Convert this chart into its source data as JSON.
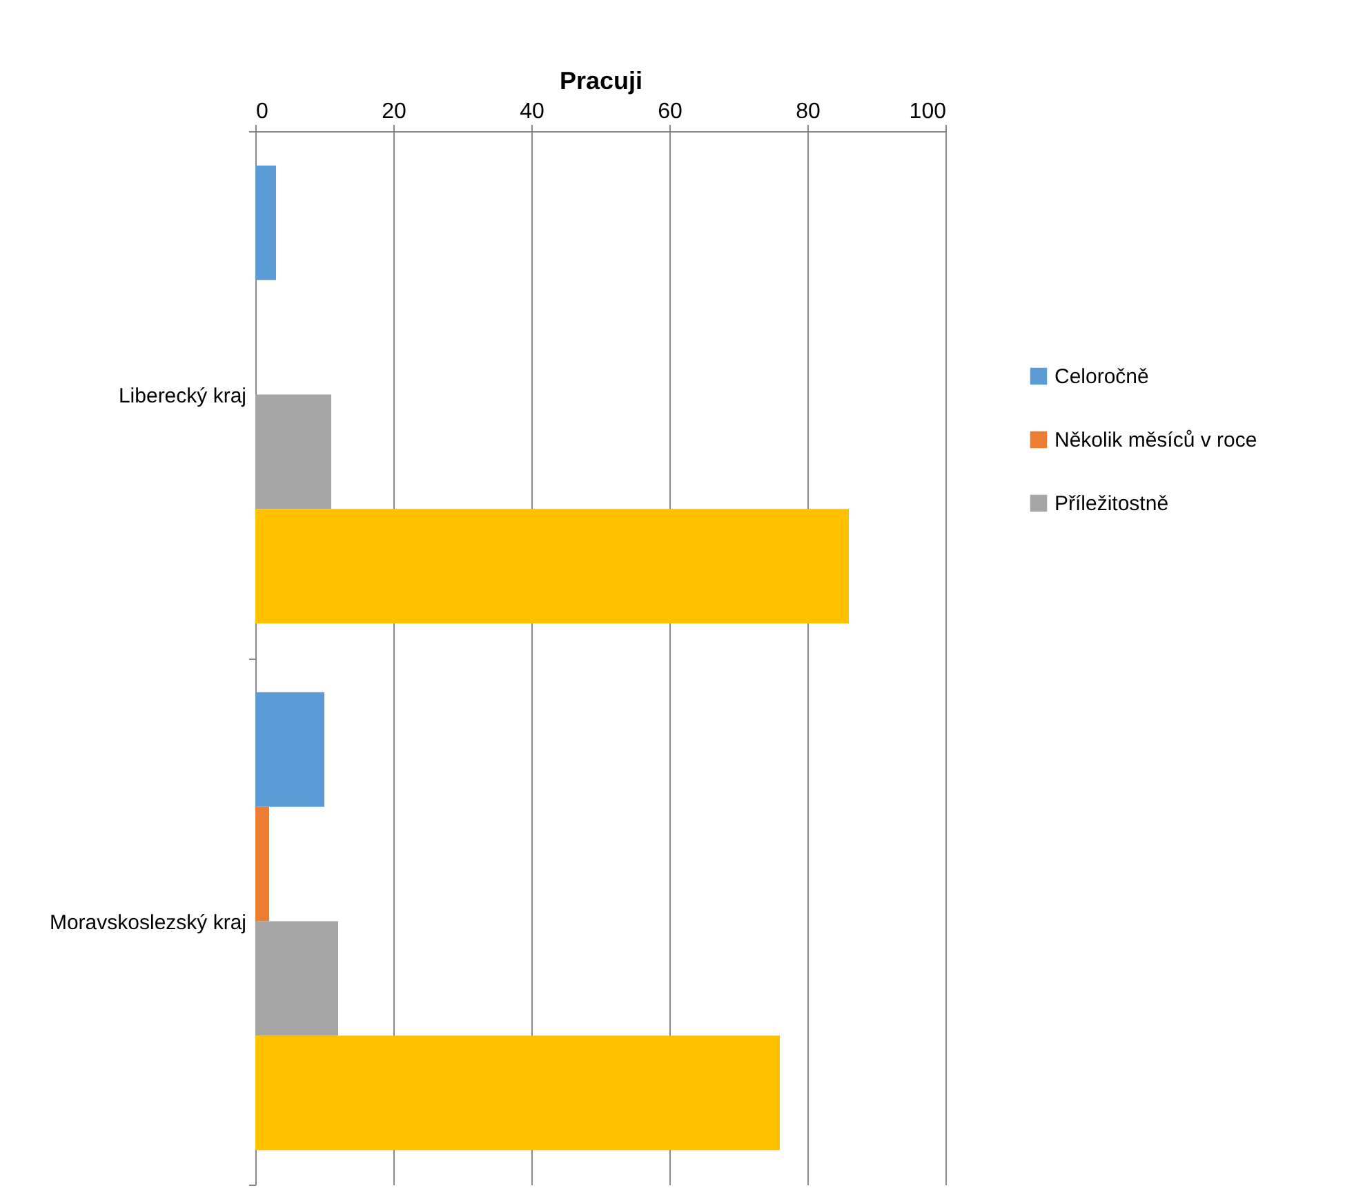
{
  "chart_data": {
    "type": "bar",
    "orientation": "horizontal",
    "xlabel": "Pracuji",
    "categories": [
      "Liberecký kraj",
      "Moravskoslezský kraj"
    ],
    "series": [
      {
        "name": "Celoročně",
        "color": "#5b9bd5",
        "values": [
          3,
          10
        ]
      },
      {
        "name": "Několik měsíců v roce",
        "color": "#ed7d31",
        "values": [
          0,
          2
        ]
      },
      {
        "name": "Příležitostně",
        "color": "#a5a5a5",
        "values": [
          11,
          12
        ]
      },
      {
        "color": "#ffc000",
        "values": [
          86,
          76
        ]
      }
    ],
    "xlim": [
      0,
      100
    ],
    "xticks": [
      0,
      20,
      40,
      60,
      80,
      100
    ],
    "grid": "x",
    "legend": "right"
  }
}
